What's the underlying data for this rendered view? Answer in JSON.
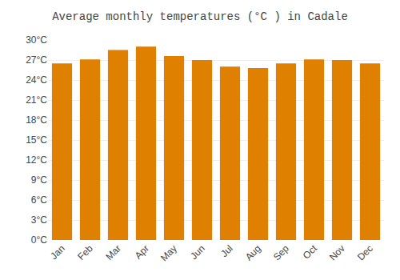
{
  "chart_data": {
    "type": "bar",
    "title": "Average monthly temperatures (°C ) in Cadale",
    "categories": [
      "Jan",
      "Feb",
      "Mar",
      "Apr",
      "May",
      "Jun",
      "Jul",
      "Aug",
      "Sep",
      "Oct",
      "Nov",
      "Dec"
    ],
    "values": [
      26.5,
      27.1,
      28.5,
      29.0,
      27.6,
      27.0,
      26.0,
      25.8,
      26.5,
      27.1,
      27.0,
      26.5
    ],
    "color": "#E08000",
    "ylim": [
      0,
      30
    ],
    "yticks": [
      {
        "value": 0,
        "label": "0°C"
      },
      {
        "value": 3,
        "label": "3°C"
      },
      {
        "value": 6,
        "label": "6°C"
      },
      {
        "value": 9,
        "label": "9°C"
      },
      {
        "value": 12,
        "label": "12°C"
      },
      {
        "value": 15,
        "label": "15°C"
      },
      {
        "value": 18,
        "label": "18°C"
      },
      {
        "value": 21,
        "label": "21°C"
      },
      {
        "value": 24,
        "label": "24°C"
      },
      {
        "value": 27,
        "label": "27°C"
      },
      {
        "value": 30,
        "label": "30°C"
      }
    ],
    "grid": true
  }
}
